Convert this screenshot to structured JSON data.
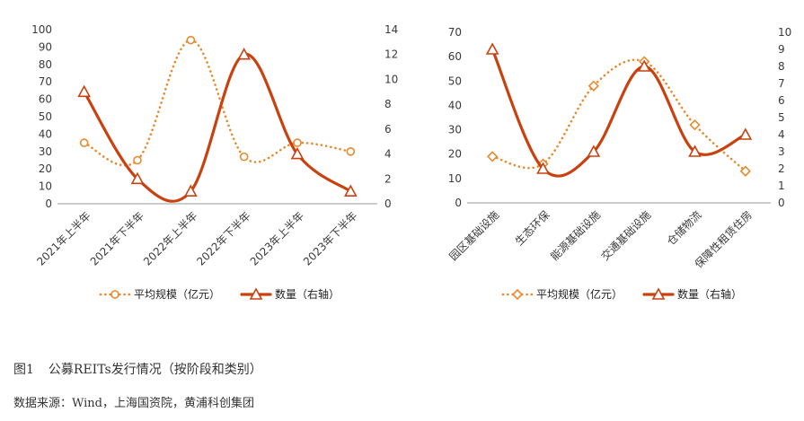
{
  "figure": {
    "number": "图1",
    "title": "公募REITs发行情况（按阶段和类别）",
    "source": "数据来源：Wind，上海国资院，黄浦科创集团"
  },
  "colors": {
    "avg_scale": "#E7892C",
    "count": "#C8410F",
    "axis": "#999999"
  },
  "chart_data": [
    {
      "type": "line",
      "categories": [
        "2021年上半年",
        "2021年下半年",
        "2022年上半年",
        "2022年下半年",
        "2023年上半年",
        "2023年下半年"
      ],
      "ylim_left": [
        0,
        100
      ],
      "yticks_left": [
        0,
        10,
        20,
        30,
        40,
        50,
        60,
        70,
        80,
        90,
        100
      ],
      "ylim_right": [
        0,
        14
      ],
      "yticks_right": [
        0,
        2,
        4,
        6,
        8,
        10,
        12,
        14
      ],
      "series": [
        {
          "name": "平均规模（亿元）",
          "axis": "left",
          "style": "dotted-circle",
          "values": [
            35,
            25,
            94,
            27,
            35,
            30
          ]
        },
        {
          "name": "数量（右轴）",
          "axis": "right",
          "style": "solid-triangle",
          "values": [
            9,
            2,
            1,
            12,
            4,
            1
          ]
        }
      ],
      "legend_position": "bottom"
    },
    {
      "type": "line",
      "categories": [
        "园区基础设施",
        "生态环保",
        "能源基础设施",
        "交通基础设施",
        "仓储物流",
        "保障性租赁住房"
      ],
      "ylim_left": [
        0,
        70
      ],
      "yticks_left": [
        0,
        10,
        20,
        30,
        40,
        50,
        60,
        70
      ],
      "ylim_right": [
        0,
        10
      ],
      "yticks_right": [
        0,
        1,
        2,
        3,
        4,
        5,
        6,
        7,
        8,
        9,
        10
      ],
      "series": [
        {
          "name": "平均规模（亿元）",
          "axis": "left",
          "style": "dotted-diamond",
          "values": [
            19,
            16,
            48,
            58,
            32,
            13
          ]
        },
        {
          "name": "数量（右轴）",
          "axis": "right",
          "style": "solid-triangle",
          "values": [
            9,
            2,
            3,
            8,
            3,
            4
          ]
        }
      ],
      "legend_position": "bottom"
    }
  ]
}
